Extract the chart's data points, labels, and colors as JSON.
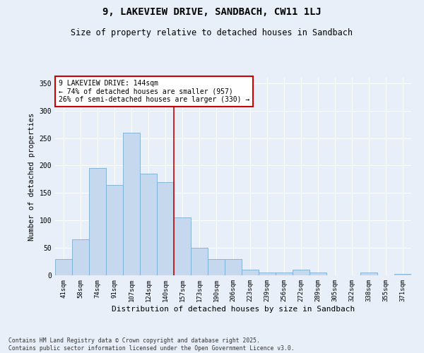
{
  "title": "9, LAKEVIEW DRIVE, SANDBACH, CW11 1LJ",
  "subtitle": "Size of property relative to detached houses in Sandbach",
  "xlabel": "Distribution of detached houses by size in Sandbach",
  "ylabel": "Number of detached properties",
  "categories": [
    "41sqm",
    "58sqm",
    "74sqm",
    "91sqm",
    "107sqm",
    "124sqm",
    "140sqm",
    "157sqm",
    "173sqm",
    "190sqm",
    "206sqm",
    "223sqm",
    "239sqm",
    "256sqm",
    "272sqm",
    "289sqm",
    "305sqm",
    "322sqm",
    "338sqm",
    "355sqm",
    "371sqm"
  ],
  "values": [
    30,
    65,
    195,
    165,
    260,
    185,
    170,
    105,
    50,
    30,
    30,
    10,
    5,
    5,
    10,
    5,
    0,
    0,
    5,
    0,
    3
  ],
  "bar_color": "#c5d8ee",
  "bar_edgecolor": "#7badd4",
  "background_color": "#e8eff8",
  "grid_color": "#ffffff",
  "vline_color": "#cc0000",
  "annotation_text": "9 LAKEVIEW DRIVE: 144sqm\n← 74% of detached houses are smaller (957)\n26% of semi-detached houses are larger (330) →",
  "annotation_box_color": "#ffffff",
  "annotation_box_edgecolor": "#cc0000",
  "footnote": "Contains HM Land Registry data © Crown copyright and database right 2025.\nContains public sector information licensed under the Open Government Licence v3.0.",
  "ylim": [
    0,
    360
  ],
  "yticks": [
    0,
    50,
    100,
    150,
    200,
    250,
    300,
    350
  ]
}
